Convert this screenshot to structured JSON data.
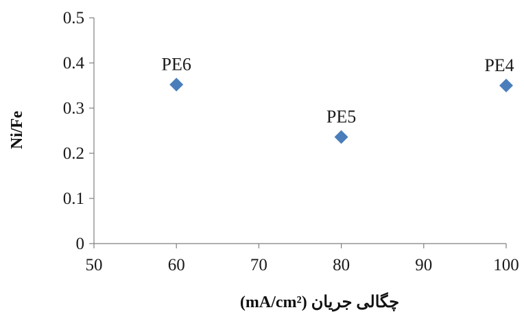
{
  "chart_data": {
    "type": "scatter",
    "title": "",
    "xlabel": "چگالی جریان (mA/cm²)",
    "ylabel": "Ni/Fe",
    "xlim": [
      50,
      100
    ],
    "ylim": [
      0,
      0.5
    ],
    "x_ticks": [
      "50",
      "60",
      "70",
      "80",
      "90",
      "100"
    ],
    "y_ticks": [
      "0",
      "0.1",
      "0.2",
      "0.3",
      "0.4",
      "0.5"
    ],
    "x_tick_values": [
      50,
      60,
      70,
      80,
      90,
      100
    ],
    "y_tick_values": [
      0,
      0.1,
      0.2,
      0.3,
      0.4,
      0.5
    ],
    "grid": false,
    "legend": "none",
    "marker": "diamond",
    "marker_color": "#4a7ebb",
    "points": [
      {
        "label": "PE6",
        "x": 60,
        "y": 0.352
      },
      {
        "label": "PE5",
        "x": 80,
        "y": 0.236
      },
      {
        "label": "PE4",
        "x": 100,
        "y": 0.35
      }
    ]
  }
}
